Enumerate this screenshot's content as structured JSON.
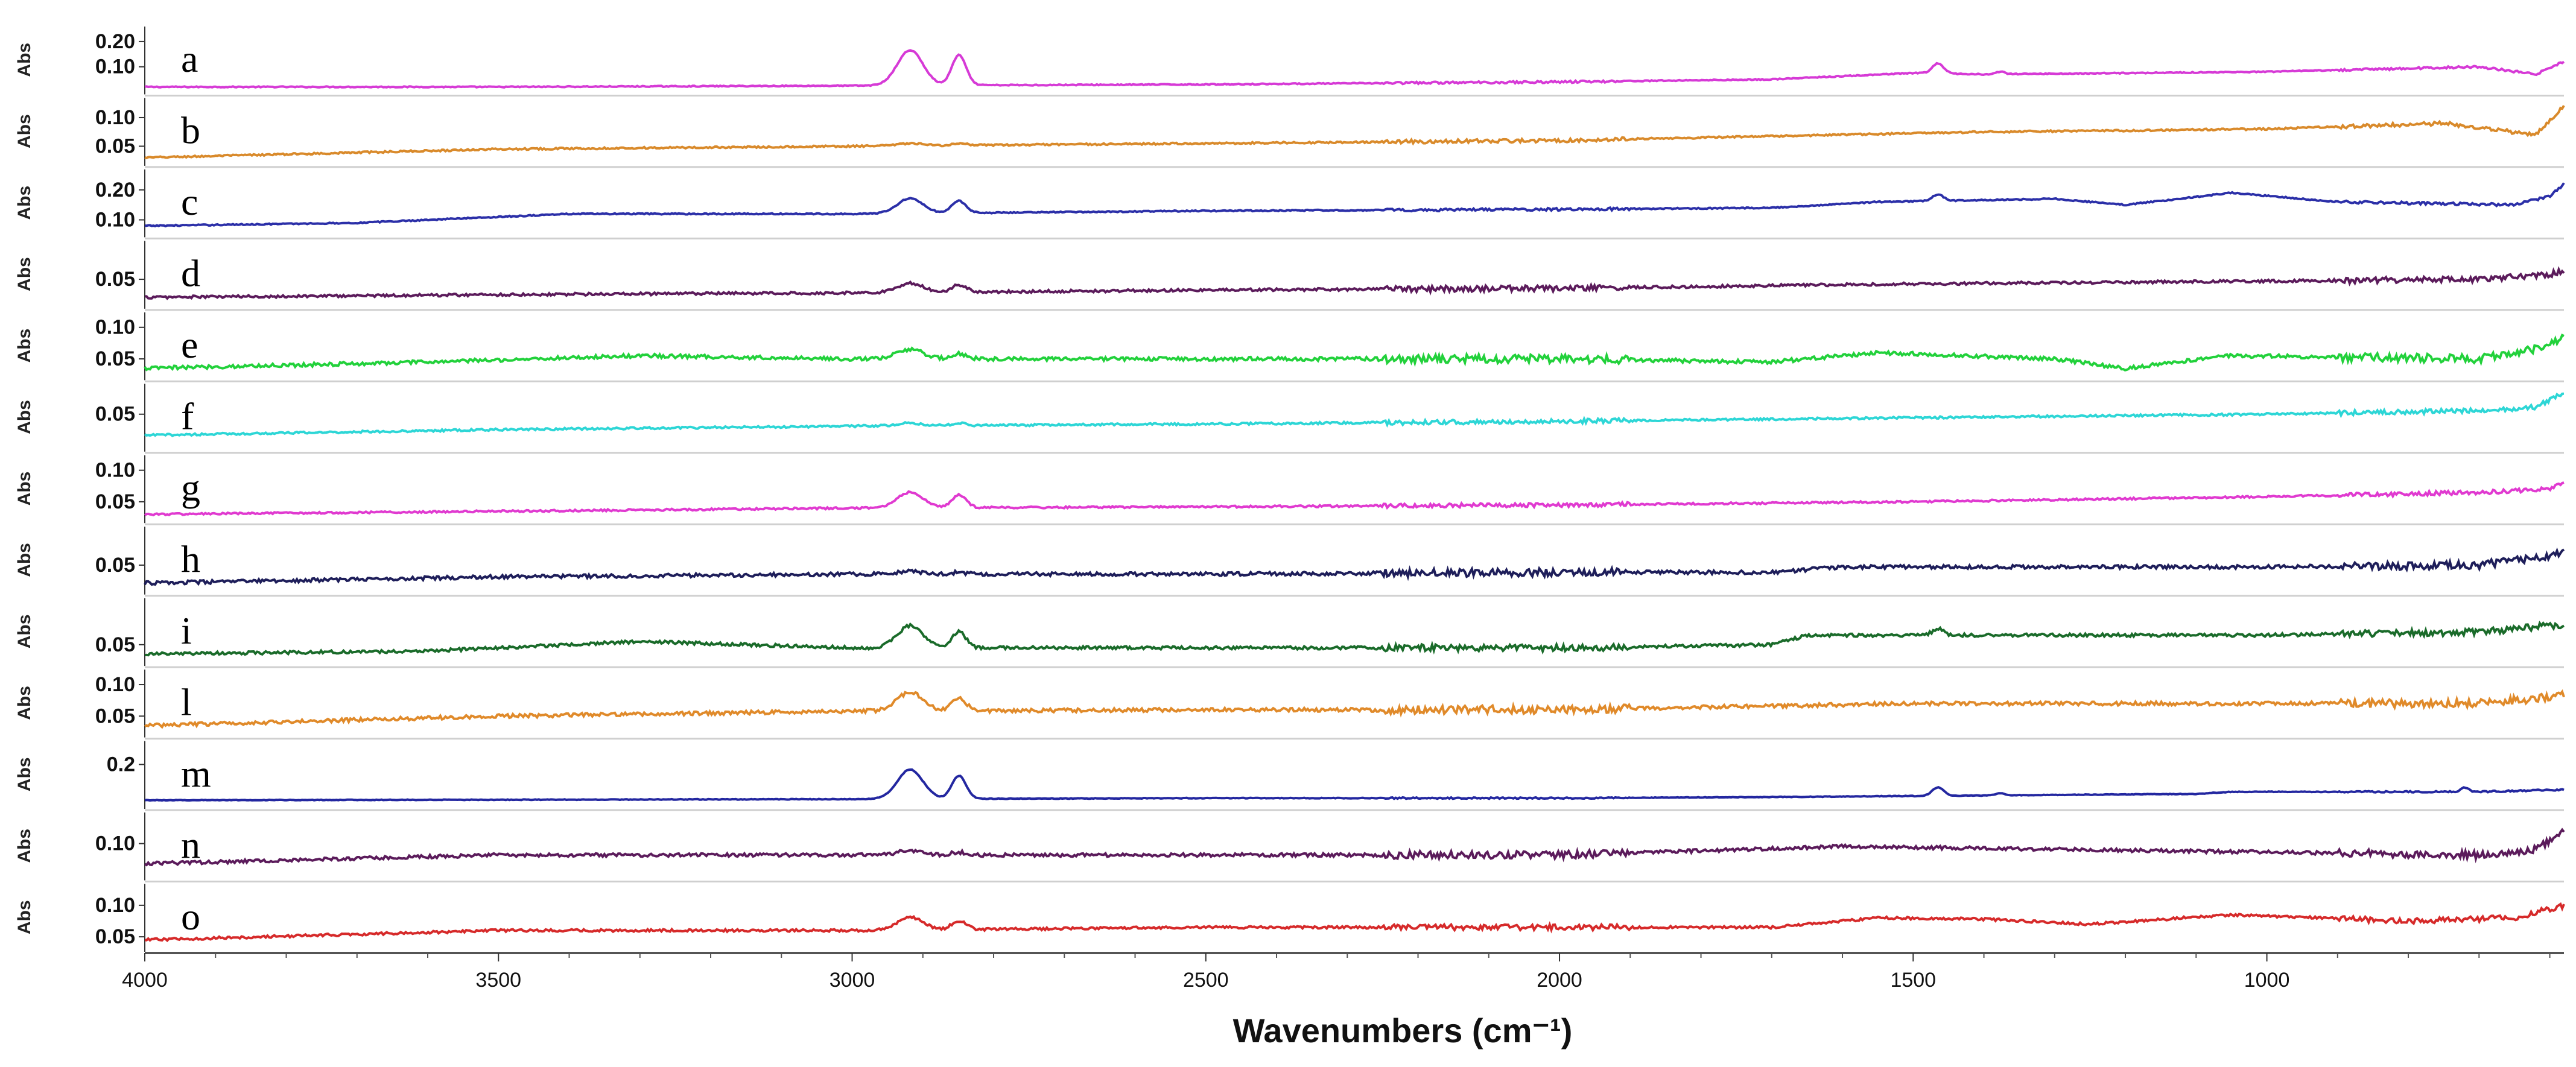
{
  "chart_data": {
    "type": "line",
    "title": "",
    "xlabel": "Wavenumbers (cm⁻¹)",
    "ylabel": "Abs",
    "xlim": [
      4000,
      580
    ],
    "x_ticks": [
      4000,
      3500,
      3000,
      2500,
      2000,
      1500,
      1000
    ],
    "x_tick_labels": [
      "4000",
      "3500",
      "3000",
      "2500",
      "2000",
      "1500",
      "1000"
    ],
    "series": [
      {
        "name": "a",
        "color": "#d63ad6",
        "ylim": [
          0.0,
          0.25
        ],
        "y_ticks": [
          0.1,
          0.2
        ],
        "y_tick_labels": [
          "0.10",
          "0.20"
        ],
        "baseline": [
          [
            4000,
            0.02
          ],
          [
            3500,
            0.02
          ],
          [
            3000,
            0.025
          ],
          [
            2500,
            0.03
          ],
          [
            2000,
            0.04
          ],
          [
            1700,
            0.05
          ],
          [
            1500,
            0.075
          ],
          [
            1400,
            0.07
          ],
          [
            1000,
            0.08
          ],
          [
            700,
            0.1
          ],
          [
            620,
            0.07
          ],
          [
            580,
            0.12
          ]
        ],
        "peaks": [
          [
            2918,
            0.14,
            18
          ],
          [
            2849,
            0.12,
            10
          ],
          [
            1465,
            0.04,
            8
          ],
          [
            1377,
            0.01,
            6
          ]
        ],
        "noise": 0.002
      },
      {
        "name": "b",
        "color": "#d98a2b",
        "ylim": [
          0.02,
          0.13
        ],
        "y_ticks": [
          0.05,
          0.1
        ],
        "y_tick_labels": [
          "0.05",
          "0.10"
        ],
        "baseline": [
          [
            4000,
            0.03
          ],
          [
            3500,
            0.045
          ],
          [
            3000,
            0.05
          ],
          [
            2500,
            0.055
          ],
          [
            2000,
            0.06
          ],
          [
            1600,
            0.07
          ],
          [
            1400,
            0.075
          ],
          [
            1000,
            0.08
          ],
          [
            750,
            0.09
          ],
          [
            620,
            0.07
          ],
          [
            580,
            0.12
          ]
        ],
        "peaks": [
          [
            2918,
            0.004,
            18
          ],
          [
            2849,
            0.003,
            10
          ]
        ],
        "noise": 0.0015
      },
      {
        "name": "c",
        "color": "#2b2fa8",
        "ylim": [
          0.05,
          0.26
        ],
        "y_ticks": [
          0.1,
          0.2
        ],
        "y_tick_labels": [
          "0.10",
          "0.20"
        ],
        "baseline": [
          [
            4000,
            0.08
          ],
          [
            3700,
            0.09
          ],
          [
            3400,
            0.12
          ],
          [
            3000,
            0.12
          ],
          [
            2500,
            0.13
          ],
          [
            2000,
            0.135
          ],
          [
            1700,
            0.14
          ],
          [
            1550,
            0.16
          ],
          [
            1300,
            0.17
          ],
          [
            1200,
            0.15
          ],
          [
            1050,
            0.19
          ],
          [
            900,
            0.16
          ],
          [
            650,
            0.15
          ],
          [
            600,
            0.18
          ],
          [
            580,
            0.22
          ]
        ],
        "peaks": [
          [
            2918,
            0.05,
            18
          ],
          [
            2849,
            0.04,
            10
          ],
          [
            1465,
            0.02,
            8
          ]
        ],
        "noise": 0.002
      },
      {
        "name": "d",
        "color": "#5b1b5b",
        "ylim": [
          0.02,
          0.09
        ],
        "y_ticks": [
          0.05
        ],
        "y_tick_labels": [
          "0.05"
        ],
        "baseline": [
          [
            4000,
            0.03
          ],
          [
            3500,
            0.033
          ],
          [
            3000,
            0.035
          ],
          [
            2500,
            0.038
          ],
          [
            2000,
            0.04
          ],
          [
            1500,
            0.045
          ],
          [
            1000,
            0.048
          ],
          [
            700,
            0.05
          ],
          [
            600,
            0.055
          ],
          [
            580,
            0.06
          ]
        ],
        "peaks": [
          [
            2918,
            0.01,
            18
          ],
          [
            2849,
            0.008,
            10
          ]
        ],
        "noise": 0.0015
      },
      {
        "name": "e",
        "color": "#22d13b",
        "ylim": [
          0.02,
          0.12
        ],
        "y_ticks": [
          0.05,
          0.1
        ],
        "y_tick_labels": [
          "0.05",
          "0.10"
        ],
        "baseline": [
          [
            4000,
            0.035
          ],
          [
            3600,
            0.045
          ],
          [
            3300,
            0.055
          ],
          [
            3000,
            0.05
          ],
          [
            2500,
            0.05
          ],
          [
            2000,
            0.05
          ],
          [
            1700,
            0.045
          ],
          [
            1550,
            0.06
          ],
          [
            1300,
            0.05
          ],
          [
            1200,
            0.035
          ],
          [
            1050,
            0.055
          ],
          [
            700,
            0.05
          ],
          [
            600,
            0.07
          ],
          [
            580,
            0.09
          ]
        ],
        "peaks": [
          [
            2918,
            0.015,
            18
          ],
          [
            2849,
            0.008,
            10
          ]
        ],
        "noise": 0.003
      },
      {
        "name": "f",
        "color": "#2dd6d6",
        "ylim": [
          0.0,
          0.09
        ],
        "y_ticks": [
          0.05
        ],
        "y_tick_labels": [
          "0.05"
        ],
        "baseline": [
          [
            4000,
            0.02
          ],
          [
            3500,
            0.028
          ],
          [
            3000,
            0.033
          ],
          [
            2500,
            0.036
          ],
          [
            2000,
            0.04
          ],
          [
            1500,
            0.045
          ],
          [
            1000,
            0.05
          ],
          [
            700,
            0.055
          ],
          [
            620,
            0.06
          ],
          [
            580,
            0.08
          ]
        ],
        "peaks": [
          [
            2918,
            0.004,
            18
          ],
          [
            2849,
            0.003,
            10
          ]
        ],
        "noise": 0.0015
      },
      {
        "name": "g",
        "color": "#e03ad0",
        "ylim": [
          0.02,
          0.12
        ],
        "y_ticks": [
          0.05,
          0.1
        ],
        "y_tick_labels": [
          "0.05",
          "0.10"
        ],
        "baseline": [
          [
            4000,
            0.03
          ],
          [
            3500,
            0.035
          ],
          [
            3000,
            0.04
          ],
          [
            2500,
            0.042
          ],
          [
            2000,
            0.045
          ],
          [
            1500,
            0.05
          ],
          [
            1000,
            0.058
          ],
          [
            700,
            0.065
          ],
          [
            600,
            0.07
          ],
          [
            580,
            0.08
          ]
        ],
        "peaks": [
          [
            2918,
            0.025,
            18
          ],
          [
            2849,
            0.02,
            10
          ]
        ],
        "noise": 0.0015
      },
      {
        "name": "h",
        "color": "#1e1e5a",
        "ylim": [
          0.02,
          0.09
        ],
        "y_ticks": [
          0.05
        ],
        "y_tick_labels": [
          "0.05"
        ],
        "baseline": [
          [
            4000,
            0.03
          ],
          [
            3500,
            0.037
          ],
          [
            3000,
            0.04
          ],
          [
            2500,
            0.04
          ],
          [
            2000,
            0.042
          ],
          [
            1700,
            0.042
          ],
          [
            1600,
            0.048
          ],
          [
            1000,
            0.048
          ],
          [
            700,
            0.05
          ],
          [
            600,
            0.06
          ],
          [
            580,
            0.065
          ]
        ],
        "peaks": [
          [
            2918,
            0.003,
            18
          ],
          [
            2849,
            0.002,
            10
          ]
        ],
        "noise": 0.002
      },
      {
        "name": "i",
        "color": "#1a6b2a",
        "ylim": [
          0.02,
          0.12
        ],
        "y_ticks": [
          0.05
        ],
        "y_tick_labels": [
          "0.05"
        ],
        "baseline": [
          [
            4000,
            0.035
          ],
          [
            3600,
            0.04
          ],
          [
            3300,
            0.055
          ],
          [
            3000,
            0.045
          ],
          [
            2500,
            0.045
          ],
          [
            2000,
            0.045
          ],
          [
            1700,
            0.05
          ],
          [
            1650,
            0.065
          ],
          [
            1500,
            0.065
          ],
          [
            1000,
            0.065
          ],
          [
            700,
            0.07
          ],
          [
            600,
            0.08
          ],
          [
            580,
            0.075
          ]
        ],
        "peaks": [
          [
            2918,
            0.035,
            18
          ],
          [
            2849,
            0.025,
            10
          ],
          [
            1465,
            0.01,
            8
          ]
        ],
        "noise": 0.0025
      },
      {
        "name": "l",
        "color": "#e08a2a",
        "ylim": [
          0.02,
          0.12
        ],
        "y_ticks": [
          0.05,
          0.1
        ],
        "y_tick_labels": [
          "0.05",
          "0.10"
        ],
        "baseline": [
          [
            4000,
            0.035
          ],
          [
            3500,
            0.05
          ],
          [
            3000,
            0.058
          ],
          [
            2500,
            0.06
          ],
          [
            2000,
            0.06
          ],
          [
            1500,
            0.07
          ],
          [
            1000,
            0.07
          ],
          [
            700,
            0.07
          ],
          [
            600,
            0.08
          ],
          [
            580,
            0.085
          ]
        ],
        "peaks": [
          [
            2918,
            0.03,
            18
          ],
          [
            2849,
            0.02,
            10
          ]
        ],
        "noise": 0.003
      },
      {
        "name": "m",
        "color": "#2327a0",
        "ylim": [
          0.0,
          0.3
        ],
        "y_ticks": [
          0.2
        ],
        "y_tick_labels": [
          "0.2"
        ],
        "baseline": [
          [
            4000,
            0.03
          ],
          [
            3500,
            0.032
          ],
          [
            3000,
            0.035
          ],
          [
            2500,
            0.04
          ],
          [
            2000,
            0.04
          ],
          [
            1700,
            0.045
          ],
          [
            1500,
            0.05
          ],
          [
            1100,
            0.06
          ],
          [
            1050,
            0.07
          ],
          [
            700,
            0.07
          ],
          [
            580,
            0.08
          ]
        ],
        "peaks": [
          [
            2918,
            0.14,
            18
          ],
          [
            2849,
            0.11,
            10
          ],
          [
            1465,
            0.04,
            8
          ],
          [
            1377,
            0.01,
            6
          ],
          [
            720,
            0.02,
            5
          ]
        ],
        "noise": 0.0015
      },
      {
        "name": "n",
        "color": "#5b1b5b",
        "ylim": [
          0.04,
          0.15
        ],
        "y_ticks": [
          0.1
        ],
        "y_tick_labels": [
          "0.10"
        ],
        "baseline": [
          [
            4000,
            0.065
          ],
          [
            3500,
            0.08
          ],
          [
            3000,
            0.08
          ],
          [
            2500,
            0.08
          ],
          [
            2000,
            0.08
          ],
          [
            1600,
            0.095
          ],
          [
            1300,
            0.09
          ],
          [
            1000,
            0.085
          ],
          [
            700,
            0.08
          ],
          [
            620,
            0.09
          ],
          [
            580,
            0.12
          ]
        ],
        "peaks": [
          [
            2918,
            0.008,
            18
          ],
          [
            2849,
            0.005,
            10
          ]
        ],
        "noise": 0.003
      },
      {
        "name": "o",
        "color": "#d62a2a",
        "ylim": [
          0.03,
          0.13
        ],
        "y_ticks": [
          0.05,
          0.1
        ],
        "y_tick_labels": [
          "0.05",
          "0.10"
        ],
        "baseline": [
          [
            4000,
            0.045
          ],
          [
            3500,
            0.06
          ],
          [
            3000,
            0.06
          ],
          [
            2500,
            0.065
          ],
          [
            2000,
            0.065
          ],
          [
            1700,
            0.065
          ],
          [
            1550,
            0.08
          ],
          [
            1400,
            0.078
          ],
          [
            1250,
            0.07
          ],
          [
            1050,
            0.085
          ],
          [
            800,
            0.075
          ],
          [
            650,
            0.08
          ],
          [
            580,
            0.1
          ]
        ],
        "peaks": [
          [
            2918,
            0.02,
            18
          ],
          [
            2849,
            0.014,
            10
          ]
        ],
        "noise": 0.002
      }
    ]
  }
}
